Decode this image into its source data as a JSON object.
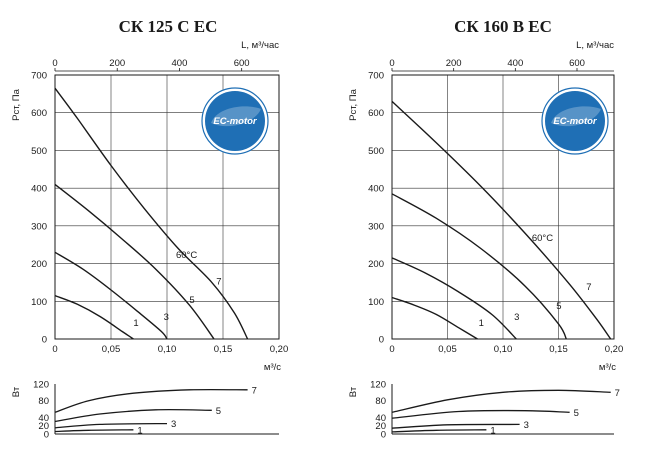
{
  "colors": {
    "axis": "#1a1a1a",
    "grid": "#333333",
    "logo_ring": "#1f6fb5",
    "logo_fill": "#1f6fb5",
    "logo_leaf": "#ffffff"
  },
  "logo_text": "EC-motor",
  "chart_data": [
    {
      "type": "line",
      "title": "СК 125 С ЕС",
      "ylabel": "Pст, Па",
      "xlabel": "м³/с",
      "top_xlabel": "L, м³/час",
      "xlim": [
        0,
        0.2
      ],
      "ylim": [
        0,
        700
      ],
      "x_ticks": [
        "0",
        "0,05",
        "0,10",
        "0,15",
        "0,20"
      ],
      "y_ticks": [
        "0",
        "100",
        "200",
        "300",
        "400",
        "500",
        "600",
        "700"
      ],
      "top_ticks": [
        "0",
        "200",
        "400",
        "600"
      ],
      "top_tick_values": [
        0,
        200,
        400,
        600
      ],
      "annotation": "60°C",
      "annotation_at": [
        0.108,
        215
      ],
      "series": [
        {
          "name": "1",
          "x": [
            0,
            0.02,
            0.04,
            0.06,
            0.07
          ],
          "y": [
            115,
            92,
            60,
            20,
            0
          ]
        },
        {
          "name": "3",
          "x": [
            0,
            0.025,
            0.05,
            0.075,
            0.095,
            0.1
          ],
          "y": [
            230,
            185,
            130,
            70,
            20,
            0
          ]
        },
        {
          "name": "5",
          "x": [
            0,
            0.03,
            0.06,
            0.09,
            0.12,
            0.142
          ],
          "y": [
            410,
            340,
            265,
            185,
            90,
            0
          ]
        },
        {
          "name": "7",
          "x": [
            0,
            0.02,
            0.05,
            0.08,
            0.11,
            0.14,
            0.16,
            0.172
          ],
          "y": [
            665,
            585,
            460,
            345,
            240,
            150,
            70,
            0
          ]
        }
      ],
      "series_labels_at": [
        [
          0.07,
          35
        ],
        [
          0.097,
          50
        ],
        [
          0.12,
          95
        ],
        [
          0.144,
          145
        ]
      ],
      "power": {
        "ylabel": "Вт",
        "ylim": [
          0,
          120
        ],
        "y_ticks": [
          "0",
          "20",
          "40",
          "80",
          "120"
        ],
        "y_tick_values": [
          0,
          20,
          40,
          80,
          120
        ],
        "series": [
          {
            "name": "1",
            "x": [
              0,
              0.03,
              0.07
            ],
            "y": [
              6,
              9,
              10
            ]
          },
          {
            "name": "3",
            "x": [
              0,
              0.04,
              0.1
            ],
            "y": [
              15,
              23,
              25
            ]
          },
          {
            "name": "5",
            "x": [
              0,
              0.04,
              0.09,
              0.14
            ],
            "y": [
              30,
              48,
              58,
              57
            ]
          },
          {
            "name": "7",
            "x": [
              0,
              0.03,
              0.07,
              0.12,
              0.172
            ],
            "y": [
              52,
              80,
              98,
              106,
              106
            ]
          }
        ]
      }
    },
    {
      "type": "line",
      "title": "СК 160 В ЕС",
      "ylabel": "Pст, Па",
      "xlabel": "м³/с",
      "top_xlabel": "L, м³/час",
      "xlim": [
        0,
        0.2
      ],
      "ylim": [
        0,
        700
      ],
      "x_ticks": [
        "0",
        "0,05",
        "0,10",
        "0,15",
        "0,20"
      ],
      "y_ticks": [
        "0",
        "100",
        "200",
        "300",
        "400",
        "500",
        "600",
        "700"
      ],
      "top_ticks": [
        "0",
        "200",
        "400",
        "600"
      ],
      "top_tick_values": [
        0,
        200,
        400,
        600
      ],
      "annotation": "60°C",
      "annotation_at": [
        0.126,
        260
      ],
      "series": [
        {
          "name": "1",
          "x": [
            0,
            0.02,
            0.04,
            0.06,
            0.077
          ],
          "y": [
            110,
            90,
            65,
            30,
            0
          ]
        },
        {
          "name": "3",
          "x": [
            0,
            0.03,
            0.06,
            0.09,
            0.112
          ],
          "y": [
            215,
            175,
            125,
            65,
            0
          ]
        },
        {
          "name": "5",
          "x": [
            0,
            0.04,
            0.08,
            0.12,
            0.15,
            0.157
          ],
          "y": [
            385,
            320,
            240,
            140,
            40,
            0
          ]
        },
        {
          "name": "7",
          "x": [
            0,
            0.04,
            0.08,
            0.12,
            0.16,
            0.185,
            0.197
          ],
          "y": [
            630,
            520,
            405,
            280,
            145,
            50,
            0
          ]
        }
      ],
      "series_labels_at": [
        [
          0.078,
          35
        ],
        [
          0.11,
          50
        ],
        [
          0.148,
          80
        ],
        [
          0.175,
          130
        ]
      ],
      "power": {
        "ylabel": "Вт",
        "ylim": [
          0,
          120
        ],
        "y_ticks": [
          "0",
          "20",
          "40",
          "80",
          "120"
        ],
        "y_tick_values": [
          0,
          20,
          40,
          80,
          120
        ],
        "series": [
          {
            "name": "1",
            "x": [
              0,
              0.04,
              0.085
            ],
            "y": [
              5,
              9,
              10
            ]
          },
          {
            "name": "3",
            "x": [
              0,
              0.05,
              0.115
            ],
            "y": [
              14,
              22,
              23
            ]
          },
          {
            "name": "5",
            "x": [
              0,
              0.06,
              0.12,
              0.16
            ],
            "y": [
              38,
              54,
              56,
              52
            ]
          },
          {
            "name": "7",
            "x": [
              0,
              0.05,
              0.1,
              0.15,
              0.197
            ],
            "y": [
              52,
              82,
              100,
              105,
              100
            ]
          }
        ]
      }
    }
  ]
}
